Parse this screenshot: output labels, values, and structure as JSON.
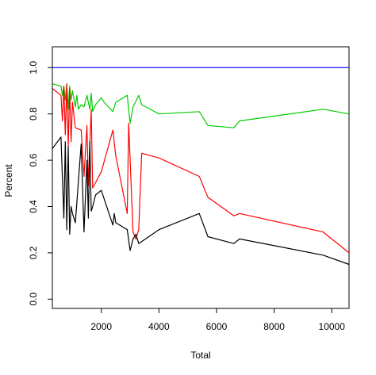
{
  "chart_data": {
    "type": "line",
    "title": "",
    "xlabel": "Total",
    "ylabel": "Percent",
    "xlim": [
      300,
      10600
    ],
    "ylim": [
      -0.04,
      1.09
    ],
    "xticks": [
      2000,
      4000,
      6000,
      8000,
      10000
    ],
    "xtick_labels": [
      "2000",
      "4000",
      "6000",
      "8000",
      "10000"
    ],
    "yticks": [
      0.0,
      0.2,
      0.4,
      0.6,
      0.8,
      1.0
    ],
    "ytick_labels": [
      "0.0",
      "0.2",
      "0.4",
      "0.6",
      "0.8",
      "1.0"
    ],
    "grid": false,
    "legend": "none",
    "series": [
      {
        "color": "#0000ff",
        "x": [
          300,
          10600
        ],
        "y": [
          1.0,
          1.0
        ]
      },
      {
        "color": "#00cd00",
        "x": [
          300,
          600,
          650,
          700,
          750,
          800,
          850,
          900,
          950,
          1000,
          1100,
          1150,
          1200,
          1300,
          1400,
          1500,
          1550,
          1600,
          1650,
          1700,
          1800,
          2000,
          2100,
          2400,
          2500,
          2900,
          3000,
          3100,
          3300,
          3400,
          4000,
          5400,
          5700,
          6600,
          6800,
          9700,
          10600
        ],
        "y": [
          0.93,
          0.92,
          0.88,
          0.92,
          0.86,
          0.93,
          0.82,
          0.92,
          0.86,
          0.9,
          0.83,
          0.88,
          0.82,
          0.84,
          0.83,
          0.88,
          0.85,
          0.82,
          0.89,
          0.81,
          0.84,
          0.87,
          0.85,
          0.81,
          0.85,
          0.88,
          0.76,
          0.83,
          0.88,
          0.84,
          0.8,
          0.81,
          0.75,
          0.74,
          0.77,
          0.82,
          0.8
        ]
      },
      {
        "color": "#ff0000",
        "x": [
          300,
          600,
          650,
          700,
          750,
          800,
          850,
          900,
          950,
          1000,
          1100,
          1300,
          1400,
          1500,
          1550,
          1600,
          1650,
          1700,
          2000,
          2400,
          2500,
          2900,
          2950,
          3100,
          3200,
          3300,
          3400,
          4000,
          5400,
          5700,
          6600,
          6800,
          9700,
          10600
        ],
        "y": [
          0.91,
          0.88,
          0.77,
          0.92,
          0.71,
          0.93,
          0.66,
          0.91,
          0.68,
          0.85,
          0.74,
          0.73,
          0.53,
          0.75,
          0.49,
          0.66,
          0.82,
          0.48,
          0.55,
          0.73,
          0.62,
          0.37,
          0.76,
          0.29,
          0.26,
          0.3,
          0.63,
          0.61,
          0.53,
          0.44,
          0.36,
          0.37,
          0.29,
          0.2
        ]
      },
      {
        "color": "#000000",
        "x": [
          300,
          600,
          650,
          700,
          750,
          800,
          850,
          900,
          950,
          1000,
          1100,
          1300,
          1400,
          1500,
          1550,
          1600,
          1650,
          1700,
          1800,
          2000,
          2400,
          2450,
          2500,
          2900,
          3000,
          3100,
          3200,
          3300,
          4000,
          5400,
          5700,
          6600,
          6800,
          9700,
          10600
        ],
        "y": [
          0.65,
          0.7,
          0.52,
          0.35,
          0.68,
          0.3,
          0.66,
          0.28,
          0.4,
          0.37,
          0.33,
          0.67,
          0.29,
          0.6,
          0.35,
          0.68,
          0.38,
          0.4,
          0.45,
          0.47,
          0.32,
          0.37,
          0.33,
          0.3,
          0.21,
          0.26,
          0.28,
          0.24,
          0.3,
          0.37,
          0.27,
          0.24,
          0.26,
          0.19,
          0.15
        ]
      }
    ]
  }
}
